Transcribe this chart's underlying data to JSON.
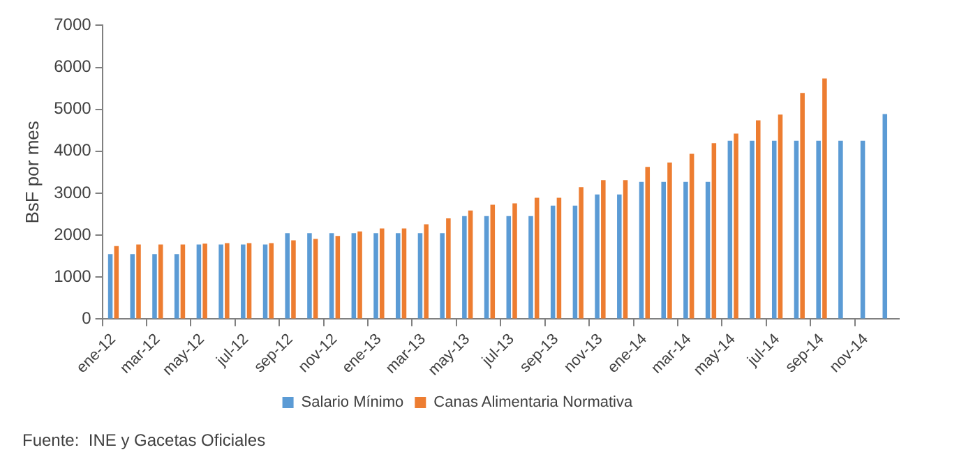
{
  "chart_data": {
    "type": "bar",
    "ylabel": "BsF por mes",
    "categories": [
      "ene-12",
      null,
      "mar-12",
      null,
      "may-12",
      null,
      "jul-12",
      null,
      "sep-12",
      null,
      "nov-12",
      null,
      "ene-13",
      null,
      "mar-13",
      null,
      "may-13",
      null,
      "jul-13",
      null,
      "sep-13",
      null,
      "nov-13",
      null,
      "ene-14",
      null,
      "mar-14",
      null,
      "may-14",
      null,
      "jul-14",
      null,
      "sep-14",
      null,
      "nov-14",
      null
    ],
    "series": [
      {
        "name": "Salario Mínimo",
        "color": "#5b9bd5",
        "values": [
          1548,
          1548,
          1548,
          1548,
          1780,
          1780,
          1780,
          1780,
          2048,
          2048,
          2048,
          2048,
          2048,
          2048,
          2048,
          2048,
          2457,
          2457,
          2457,
          2457,
          2703,
          2703,
          2973,
          2973,
          3270,
          3270,
          3270,
          3270,
          4252,
          4252,
          4252,
          4252,
          4252,
          4252,
          4252,
          4889
        ]
      },
      {
        "name": "Canas Alimentaria Normativa",
        "color": "#ed7d31",
        "values": [
          1740,
          1780,
          1780,
          1780,
          1800,
          1810,
          1810,
          1810,
          1880,
          1910,
          1980,
          2090,
          2160,
          2160,
          2260,
          2400,
          2590,
          2725,
          2757,
          2893,
          2893,
          3145,
          3312,
          3312,
          3627,
          3732,
          3941,
          4193,
          4423,
          4738,
          4874,
          5388,
          5734,
          null,
          null,
          null
        ]
      }
    ],
    "ylim": [
      0,
      7000
    ],
    "yticks": [
      0,
      1000,
      2000,
      3000,
      4000,
      5000,
      6000,
      7000
    ],
    "grid": false,
    "legend": "bottom",
    "annotations": [
      "Fuente:  INE y Gacetas Oficiales"
    ]
  }
}
